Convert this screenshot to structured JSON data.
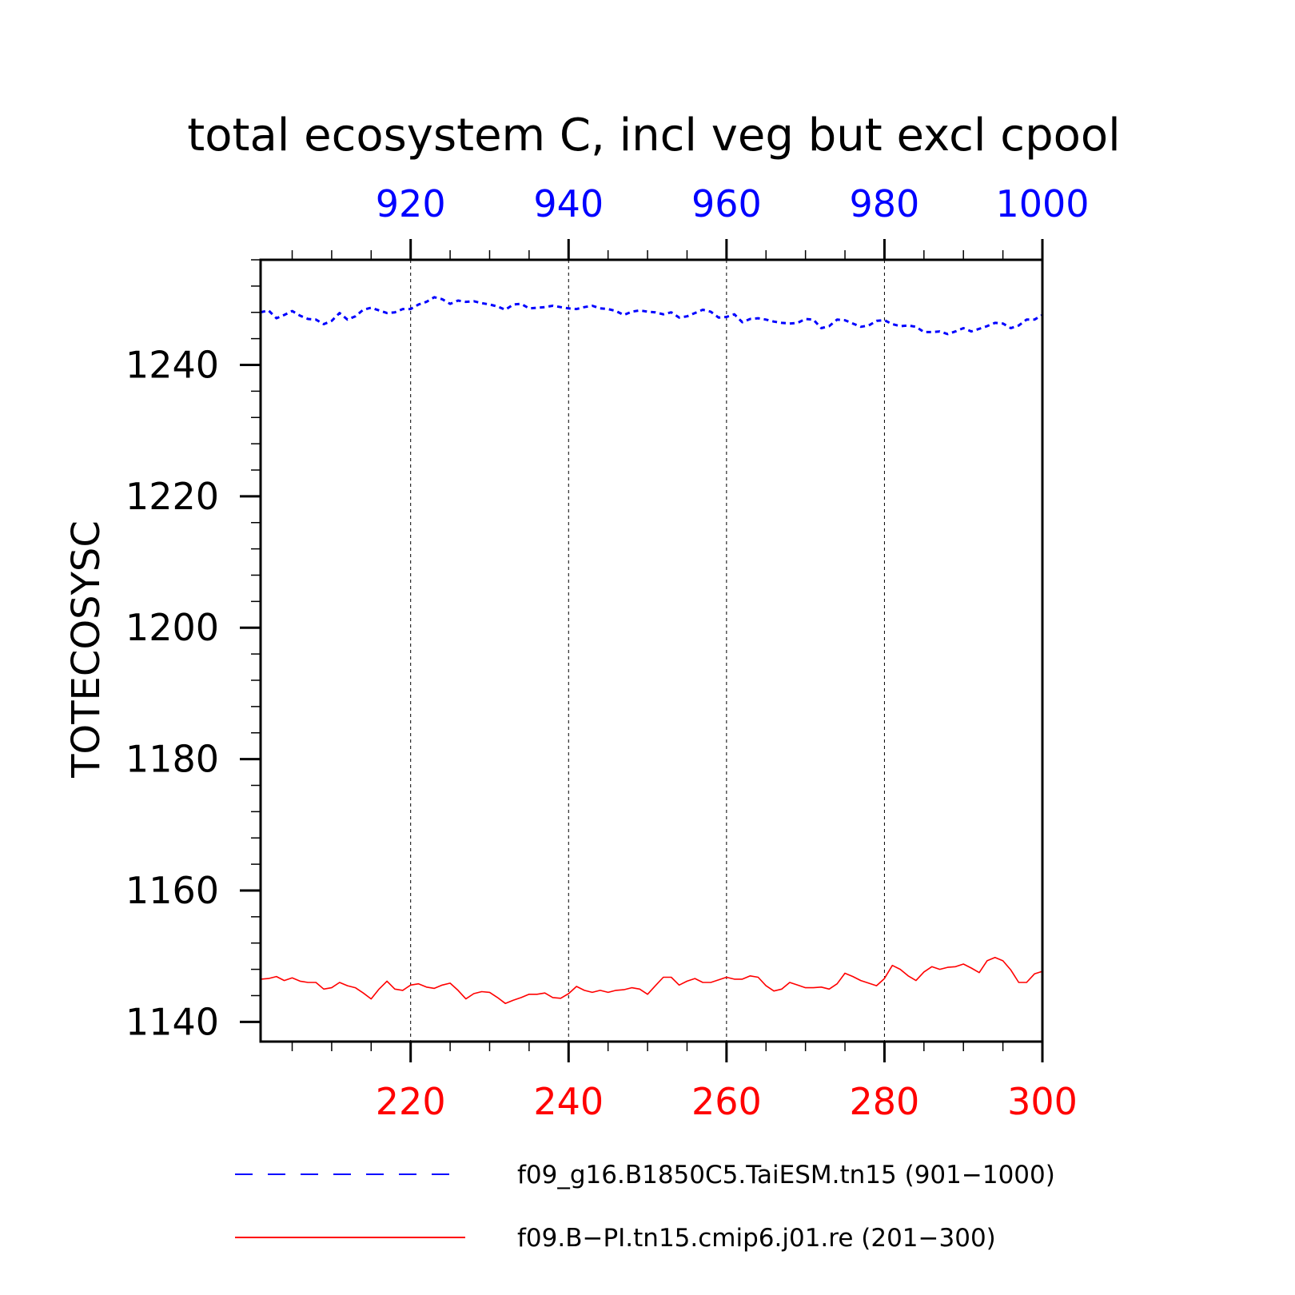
{
  "chart_data": {
    "type": "line",
    "title": "total ecosystem C, incl veg but excl cpool",
    "ylabel": "TOTECOSYSC",
    "xlabel": "",
    "ylim": [
      1137,
      1256
    ],
    "yticks": [
      1140,
      1160,
      1180,
      1200,
      1220,
      1240
    ],
    "ytick_labels": [
      "1140",
      "1160",
      "1180",
      "1200",
      "1220",
      "1240"
    ],
    "grid": "vertical dashed at labelled x ticks",
    "x_bottom": {
      "range": [
        201,
        300
      ],
      "ticks": [
        220,
        240,
        260,
        280,
        300
      ],
      "tick_labels": [
        "220",
        "240",
        "260",
        "280",
        "300"
      ],
      "color": "#ff0000"
    },
    "x_top": {
      "range": [
        901,
        1000
      ],
      "ticks": [
        920,
        940,
        960,
        980,
        1000
      ],
      "tick_labels": [
        "920",
        "940",
        "960",
        "980",
        "1000"
      ],
      "color": "#0000ff"
    },
    "legend_position": "bottom",
    "series": [
      {
        "name": "f09_g16.B1850C5.TaiESM.tn15 (901−1000)",
        "axis": "top",
        "color": "#0000ff",
        "dash": "dashed",
        "x": [
          901,
          902,
          903,
          904,
          905,
          906,
          907,
          908,
          909,
          910,
          911,
          912,
          913,
          914,
          915,
          916,
          917,
          918,
          919,
          920,
          921,
          922,
          923,
          924,
          925,
          926,
          927,
          928,
          929,
          930,
          931,
          932,
          933,
          934,
          935,
          936,
          937,
          938,
          939,
          940,
          941,
          942,
          943,
          944,
          945,
          946,
          947,
          948,
          949,
          950,
          951,
          952,
          953,
          954,
          955,
          956,
          957,
          958,
          959,
          960,
          961,
          962,
          963,
          964,
          965,
          966,
          967,
          968,
          969,
          970,
          971,
          972,
          973,
          974,
          975,
          976,
          977,
          978,
          979,
          980,
          981,
          982,
          983,
          984,
          985,
          986,
          987,
          988,
          989,
          990,
          991,
          992,
          993,
          994,
          995,
          996,
          997,
          998,
          999,
          1000
        ],
        "values": [
          1248.0,
          1248.3,
          1247.1,
          1247.6,
          1248.2,
          1247.5,
          1247.0,
          1246.9,
          1246.2,
          1246.7,
          1247.9,
          1246.9,
          1247.4,
          1248.4,
          1248.7,
          1248.3,
          1247.9,
          1248.0,
          1248.5,
          1248.5,
          1249.2,
          1249.6,
          1250.3,
          1250.0,
          1249.3,
          1249.8,
          1249.6,
          1249.7,
          1249.4,
          1249.2,
          1248.9,
          1248.4,
          1249.2,
          1249.3,
          1248.6,
          1248.7,
          1248.8,
          1249.0,
          1248.8,
          1248.6,
          1248.5,
          1248.8,
          1249.0,
          1248.6,
          1248.5,
          1248.2,
          1247.6,
          1248.1,
          1248.3,
          1248.1,
          1248.0,
          1247.7,
          1248.0,
          1247.2,
          1247.4,
          1247.9,
          1248.4,
          1248.1,
          1247.2,
          1247.3,
          1247.7,
          1246.5,
          1247.0,
          1247.1,
          1246.9,
          1246.6,
          1246.4,
          1246.3,
          1246.4,
          1247.0,
          1246.9,
          1245.6,
          1245.9,
          1246.9,
          1246.8,
          1246.3,
          1245.8,
          1246.0,
          1246.7,
          1246.8,
          1246.2,
          1245.9,
          1246.0,
          1245.8,
          1245.0,
          1245.0,
          1245.1,
          1244.7,
          1245.1,
          1245.6,
          1245.1,
          1245.5,
          1245.9,
          1246.4,
          1246.3,
          1245.6,
          1246.0,
          1246.9,
          1246.9,
          1247.6
        ]
      },
      {
        "name": "f09.B−PI.tn15.cmip6.j01.re (201−300)",
        "axis": "bottom",
        "color": "#ff0000",
        "dash": "solid",
        "x": [
          201,
          202,
          203,
          204,
          205,
          206,
          207,
          208,
          209,
          210,
          211,
          212,
          213,
          214,
          215,
          216,
          217,
          218,
          219,
          220,
          221,
          222,
          223,
          224,
          225,
          226,
          227,
          228,
          229,
          230,
          231,
          232,
          233,
          234,
          235,
          236,
          237,
          238,
          239,
          240,
          241,
          242,
          243,
          244,
          245,
          246,
          247,
          248,
          249,
          250,
          251,
          252,
          253,
          254,
          255,
          256,
          257,
          258,
          259,
          260,
          261,
          262,
          263,
          264,
          265,
          266,
          267,
          268,
          269,
          270,
          271,
          272,
          273,
          274,
          275,
          276,
          277,
          278,
          279,
          280,
          281,
          282,
          283,
          284,
          285,
          286,
          287,
          288,
          289,
          290,
          291,
          292,
          293,
          294,
          295,
          296,
          297,
          298,
          299,
          300
        ],
        "values": [
          1146.5,
          1146.6,
          1146.9,
          1146.3,
          1146.7,
          1146.2,
          1146.0,
          1146.0,
          1145.0,
          1145.2,
          1146.0,
          1145.5,
          1145.2,
          1144.4,
          1143.5,
          1145.0,
          1146.2,
          1145.0,
          1144.8,
          1145.6,
          1145.8,
          1145.3,
          1145.1,
          1145.6,
          1145.9,
          1144.8,
          1143.5,
          1144.3,
          1144.6,
          1144.5,
          1143.7,
          1142.8,
          1143.3,
          1143.7,
          1144.2,
          1144.2,
          1144.4,
          1143.7,
          1143.6,
          1144.3,
          1145.4,
          1144.8,
          1144.5,
          1144.8,
          1144.5,
          1144.8,
          1144.9,
          1145.2,
          1145.0,
          1144.2,
          1145.5,
          1146.8,
          1146.8,
          1145.6,
          1146.2,
          1146.6,
          1146.0,
          1146.0,
          1146.4,
          1146.8,
          1146.5,
          1146.5,
          1147.0,
          1146.8,
          1145.5,
          1144.7,
          1145.0,
          1146.0,
          1145.6,
          1145.2,
          1145.2,
          1145.3,
          1145.0,
          1145.8,
          1147.4,
          1146.9,
          1146.3,
          1145.9,
          1145.5,
          1146.6,
          1148.6,
          1148.0,
          1147.0,
          1146.3,
          1147.6,
          1148.4,
          1148.0,
          1148.3,
          1148.4,
          1148.8,
          1148.2,
          1147.5,
          1149.3,
          1149.8,
          1149.3,
          1147.9,
          1146.0,
          1146.0,
          1147.3,
          1147.7
        ]
      }
    ]
  }
}
